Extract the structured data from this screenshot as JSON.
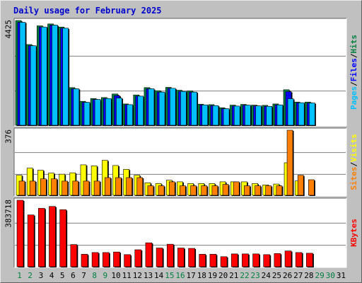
{
  "title": "Daily usage for February 2025",
  "colors": {
    "hits": "#008040",
    "files": "#0000ff",
    "pages": "#00c0ff",
    "visits": "#ffff00",
    "sites": "#ff8000",
    "kbytes": "#ff0000",
    "background": "#c0c0c0",
    "plot": "#ffffff",
    "grid": "#808080",
    "weekday_label": "#000000",
    "weekend_label": "#008040"
  },
  "legend": {
    "top": [
      {
        "label": "Pages",
        "color": "#00c0ff"
      },
      {
        "label": "/",
        "color": "#000000"
      },
      {
        "label": "Files",
        "color": "#0000ff"
      },
      {
        "label": "/",
        "color": "#000000"
      },
      {
        "label": "Hits",
        "color": "#008040"
      }
    ],
    "middle": [
      {
        "label": "Sites",
        "color": "#ff8000"
      },
      {
        "label": "/",
        "color": "#000000"
      },
      {
        "label": "Visits",
        "color": "#ffff00"
      }
    ],
    "bottom": [
      {
        "label": "KBytes",
        "color": "#ff0000"
      }
    ]
  },
  "chart_data": [
    {
      "type": "bar",
      "categories": [
        "1",
        "2",
        "3",
        "4",
        "5",
        "6",
        "7",
        "8",
        "9",
        "10",
        "11",
        "12",
        "13",
        "14",
        "15",
        "16",
        "17",
        "18",
        "19",
        "20",
        "21",
        "22",
        "23",
        "24",
        "25",
        "26",
        "27",
        "28",
        "29",
        "30",
        "31"
      ],
      "y_max_label": "4425",
      "ylim": [
        0,
        4425
      ],
      "grid": true,
      "series": [
        {
          "name": "Hits",
          "values": [
            4425,
            3410,
            4200,
            4280,
            4150,
            1590,
            1010,
            1130,
            1170,
            1320,
            900,
            1280,
            1590,
            1460,
            1600,
            1480,
            1450,
            890,
            870,
            740,
            850,
            880,
            850,
            840,
            900,
            1500,
            980,
            980,
            0,
            0,
            0
          ]
        },
        {
          "name": "Files",
          "values": [
            4350,
            3360,
            4150,
            4230,
            4100,
            1540,
            970,
            1090,
            1130,
            1250,
            870,
            1230,
            1540,
            1400,
            1560,
            1430,
            1400,
            860,
            830,
            700,
            810,
            850,
            820,
            800,
            860,
            1420,
            950,
            940,
            0,
            0,
            0
          ]
        },
        {
          "name": "Pages",
          "values": [
            4350,
            3360,
            4150,
            4230,
            4100,
            1540,
            970,
            1090,
            1130,
            1150,
            870,
            1230,
            1540,
            1400,
            1560,
            1430,
            1400,
            860,
            830,
            700,
            810,
            850,
            820,
            800,
            860,
            1120,
            950,
            940,
            0,
            0,
            0
          ]
        }
      ]
    },
    {
      "type": "bar",
      "categories": [
        "1",
        "2",
        "3",
        "4",
        "5",
        "6",
        "7",
        "8",
        "9",
        "10",
        "11",
        "12",
        "13",
        "14",
        "15",
        "16",
        "17",
        "18",
        "19",
        "20",
        "21",
        "22",
        "23",
        "24",
        "25",
        "26",
        "27",
        "28",
        "29",
        "30",
        "31"
      ],
      "y_max_label": "376",
      "ylim": [
        0,
        376
      ],
      "grid": true,
      "series": [
        {
          "name": "Visits",
          "values": [
            116,
            157,
            145,
            128,
            122,
            130,
            176,
            170,
            202,
            172,
            150,
            116,
            72,
            68,
            87,
            78,
            68,
            68,
            68,
            78,
            78,
            78,
            68,
            60,
            65,
            188,
            83,
            0,
            0,
            0,
            0
          ]
        },
        {
          "name": "Sites",
          "values": [
            82,
            82,
            95,
            95,
            82,
            82,
            82,
            82,
            102,
            102,
            102,
            102,
            55,
            55,
            78,
            55,
            55,
            55,
            55,
            63,
            78,
            55,
            55,
            55,
            55,
            376,
            116,
            90,
            0,
            0,
            0
          ]
        }
      ]
    },
    {
      "type": "bar",
      "categories": [
        "1",
        "2",
        "3",
        "4",
        "5",
        "6",
        "7",
        "8",
        "9",
        "10",
        "11",
        "12",
        "13",
        "14",
        "15",
        "16",
        "17",
        "18",
        "19",
        "20",
        "21",
        "22",
        "23",
        "24",
        "25",
        "26",
        "27",
        "28",
        "29",
        "30",
        "31"
      ],
      "y_max_label": "383718",
      "ylim": [
        0,
        383718
      ],
      "grid": true,
      "series": [
        {
          "name": "KBytes",
          "values": [
            383718,
            299000,
            337000,
            348000,
            329000,
            128000,
            72000,
            82000,
            82000,
            85000,
            70000,
            98000,
            138000,
            108000,
            130000,
            108000,
            106000,
            72000,
            72000,
            58000,
            74000,
            74000,
            74000,
            70000,
            76000,
            91000,
            82000,
            78000,
            0,
            0,
            0
          ]
        }
      ]
    }
  ]
}
